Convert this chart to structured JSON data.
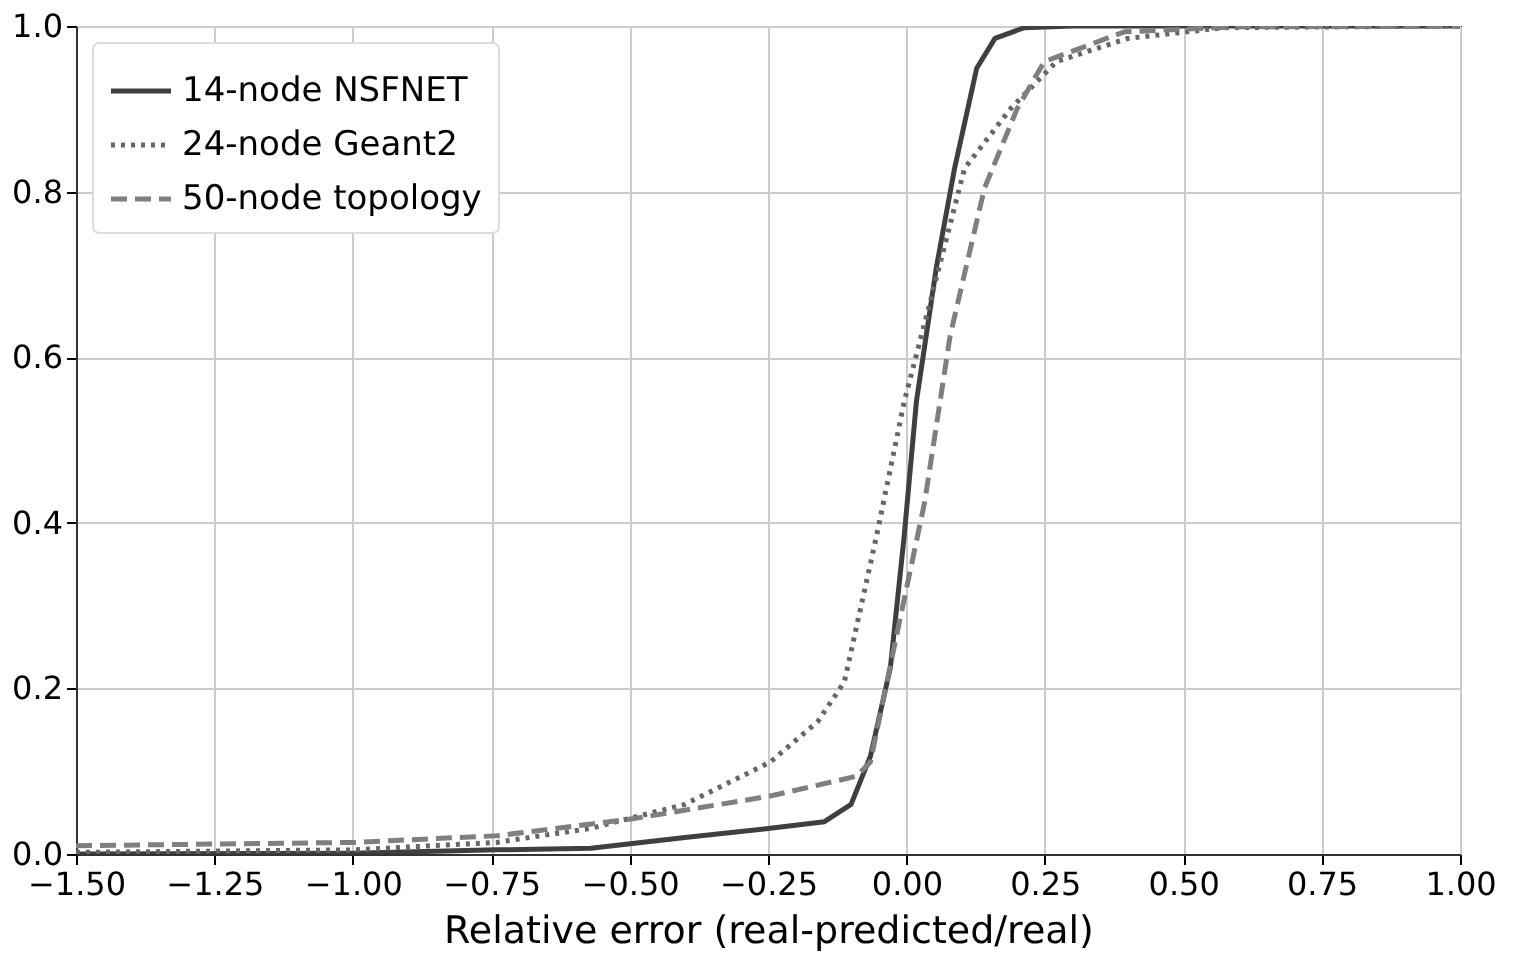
{
  "chart_data": {
    "type": "line",
    "xlabel": "Relative error (real-predicted/real)",
    "xlim": [
      -1.5,
      1.0
    ],
    "ylim": [
      0,
      1.0
    ],
    "xticks": [
      {
        "value": -1.5,
        "label": "−1.50"
      },
      {
        "value": -1.25,
        "label": "−1.25"
      },
      {
        "value": -1.0,
        "label": "−1.00"
      },
      {
        "value": -0.75,
        "label": "−0.75"
      },
      {
        "value": -0.5,
        "label": "−0.50"
      },
      {
        "value": -0.25,
        "label": "−0.25"
      },
      {
        "value": 0,
        "label": "0.00"
      },
      {
        "value": 0.25,
        "label": "0.25"
      },
      {
        "value": 0.5,
        "label": "0.50"
      },
      {
        "value": 0.75,
        "label": "0.75"
      },
      {
        "value": 1.0,
        "label": "1.00"
      }
    ],
    "yticks": [
      {
        "value": 0,
        "label": "0.0"
      },
      {
        "value": 0.2,
        "label": "0.2"
      },
      {
        "value": 0.4,
        "label": "0.4"
      },
      {
        "value": 0.6,
        "label": "0.6"
      },
      {
        "value": 0.8,
        "label": "0.8"
      },
      {
        "value": 1.0,
        "label": "1.0"
      }
    ],
    "grid": true,
    "legend": "top left",
    "marker": "none",
    "series": [
      {
        "name": "14-node NSFNET",
        "color": "#3f3f3f",
        "line_style": "solid",
        "x": [
          -1.5,
          -1.0,
          -0.74,
          -0.57,
          -0.4,
          -0.246,
          -0.148,
          -0.1,
          -0.065,
          -0.029,
          -0.004,
          0.018,
          0.054,
          0.087,
          0.127,
          0.16,
          0.213,
          0.3,
          0.5,
          1.0
        ],
        "values": [
          0.0,
          0.001,
          0.005,
          0.007,
          0.02,
          0.031,
          0.039,
          0.06,
          0.118,
          0.225,
          0.384,
          0.546,
          0.708,
          0.828,
          0.949,
          0.985,
          0.998,
          1.0,
          1.0,
          1.0
        ]
      },
      {
        "name": "24-node Geant2",
        "color": "#666666",
        "line_style": "dotted",
        "x": [
          -1.5,
          -1.0,
          -0.74,
          -0.57,
          -0.4,
          -0.246,
          -0.16,
          -0.112,
          -0.054,
          -0.004,
          0.043,
          0.105,
          0.188,
          0.271,
          0.4,
          0.574,
          1.0
        ],
        "values": [
          0.002,
          0.005,
          0.014,
          0.031,
          0.06,
          0.111,
          0.16,
          0.208,
          0.384,
          0.546,
          0.667,
          0.828,
          0.9,
          0.957,
          0.985,
          0.998,
          1.0
        ]
      },
      {
        "name": "50-node topology",
        "color": "#7f7f7f",
        "line_style": "dashed",
        "x": [
          -1.5,
          -1.0,
          -0.74,
          -0.49,
          -0.246,
          -0.09,
          -0.065,
          -0.018,
          0.033,
          0.079,
          0.141,
          0.2,
          0.249,
          0.394,
          0.6,
          1.0
        ],
        "values": [
          0.01,
          0.014,
          0.022,
          0.043,
          0.07,
          0.094,
          0.111,
          0.263,
          0.425,
          0.626,
          0.804,
          0.9,
          0.957,
          0.993,
          0.999,
          1.0
        ]
      }
    ]
  }
}
